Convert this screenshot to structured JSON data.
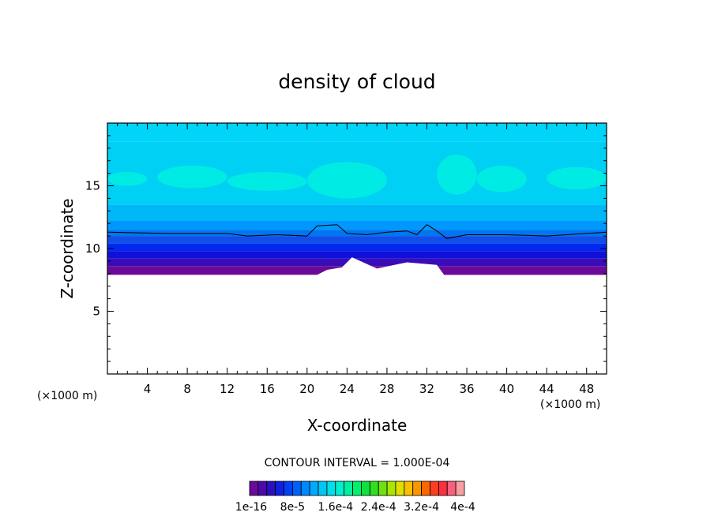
{
  "chart_data": {
    "type": "heatmap",
    "title": "density of cloud",
    "xlabel": "X-coordinate",
    "ylabel": "Z-coordinate",
    "x_unit": "(×1000 m)",
    "z_unit": "(×1000 m)",
    "xlim": [
      0,
      50
    ],
    "ylim": [
      0,
      20
    ],
    "x_ticks": [
      4,
      8,
      12,
      16,
      20,
      24,
      28,
      32,
      36,
      40,
      44,
      48
    ],
    "y_ticks": [
      5,
      10,
      15
    ],
    "contour_interval_label": "CONTOUR INTERVAL = 1.000E-04",
    "colorbar": {
      "colors": [
        "#6a0a9a",
        "#4b0aa8",
        "#2a10c0",
        "#1020e0",
        "#0040f0",
        "#0060f8",
        "#0088ff",
        "#00aaff",
        "#00c8f0",
        "#00e0e8",
        "#00f0d0",
        "#00f0a0",
        "#00f070",
        "#10e040",
        "#30e020",
        "#70e010",
        "#a8e800",
        "#e0e000",
        "#f8c000",
        "#f89800",
        "#f86800",
        "#f84020",
        "#f83040",
        "#f86080",
        "#f8a0a0"
      ],
      "labels": [
        "1e-16",
        "8e-5",
        "1.6e-4",
        "2.4e-4",
        "3.2e-4",
        "4e-4"
      ]
    },
    "layers": [
      {
        "z_bottom": 18.5,
        "z_top": 20,
        "color": "#00d4f8"
      },
      {
        "z_bottom": 13.5,
        "z_top": 18.5,
        "color": "#00d0f4"
      },
      {
        "z_bottom": 12.2,
        "z_top": 13.5,
        "color": "#00b8f8"
      },
      {
        "z_bottom": 11.5,
        "z_top": 12.2,
        "color": "#0098fc"
      },
      {
        "z_bottom": 11.0,
        "z_top": 11.5,
        "color": "#0076f0"
      },
      {
        "z_bottom": 10.4,
        "z_top": 11.0,
        "color": "#1050e8"
      },
      {
        "z_bottom": 9.8,
        "z_top": 10.4,
        "color": "#0028f0"
      },
      {
        "z_bottom": 9.2,
        "z_top": 9.8,
        "color": "#1010d8"
      },
      {
        "z_bottom": 8.6,
        "z_top": 9.2,
        "color": "#3a0cb8"
      },
      {
        "z_bottom": 7.9,
        "z_top": 8.6,
        "color": "#6a0a9a"
      }
    ],
    "teal_patches": [
      {
        "x": [
          5,
          12
        ],
        "z": [
          14.8,
          16.6
        ]
      },
      {
        "x": [
          12,
          20
        ],
        "z": [
          14.6,
          16.1
        ]
      },
      {
        "x": [
          20,
          28
        ],
        "z": [
          14.0,
          16.9
        ]
      },
      {
        "x": [
          33,
          37
        ],
        "z": [
          14.3,
          17.5
        ]
      },
      {
        "x": [
          37,
          42
        ],
        "z": [
          14.5,
          16.6
        ]
      },
      {
        "x": [
          44,
          50
        ],
        "z": [
          14.7,
          16.5
        ]
      },
      {
        "x": [
          0,
          4
        ],
        "z": [
          15.0,
          16.1
        ]
      }
    ],
    "cloud_base": [
      [
        0,
        7.9
      ],
      [
        21,
        7.9
      ],
      [
        22,
        8.3
      ],
      [
        23.5,
        8.5
      ],
      [
        24.5,
        9.3
      ],
      [
        27,
        8.4
      ],
      [
        30,
        8.9
      ],
      [
        33,
        8.7
      ],
      [
        34,
        7.6
      ],
      [
        50,
        7.9
      ]
    ],
    "contour_line": [
      [
        0,
        11.3
      ],
      [
        6,
        11.2
      ],
      [
        12,
        11.2
      ],
      [
        14,
        11.0
      ],
      [
        17,
        11.1
      ],
      [
        20,
        11.0
      ],
      [
        21,
        11.8
      ],
      [
        23,
        11.9
      ],
      [
        24,
        11.2
      ],
      [
        26,
        11.1
      ],
      [
        28,
        11.3
      ],
      [
        30,
        11.4
      ],
      [
        31,
        11.1
      ],
      [
        32,
        11.9
      ],
      [
        33,
        11.4
      ],
      [
        34,
        10.8
      ],
      [
        36,
        11.1
      ],
      [
        40,
        11.1
      ],
      [
        44,
        11.0
      ],
      [
        48,
        11.2
      ],
      [
        50,
        11.3
      ]
    ]
  }
}
